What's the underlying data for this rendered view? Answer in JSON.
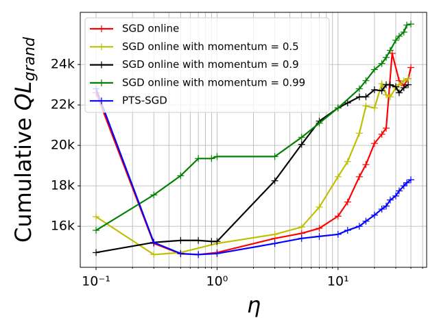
{
  "chart_data": {
    "type": "line",
    "xlabel": "η",
    "ylabel": "Cumulative",
    "ylabel_symbol": "QL",
    "ylabel_subscript": "grand",
    "xscale": "log",
    "xlim": [
      0.074,
      54
    ],
    "ylim": [
      13970,
      26580
    ],
    "xticks": [
      {
        "value": 0.1,
        "label": "10⁻¹"
      },
      {
        "value": 1,
        "label": "10⁰"
      },
      {
        "value": 10,
        "label": "10¹"
      }
    ],
    "xticks_minor": [
      0.2,
      0.3,
      0.4,
      0.5,
      0.6,
      0.7,
      0.8,
      0.9,
      2,
      3,
      4,
      5,
      6,
      7,
      8,
      9,
      20,
      30,
      40,
      50
    ],
    "yticks": [
      {
        "value": 16000,
        "label": "16k"
      },
      {
        "value": 18000,
        "label": "18k"
      },
      {
        "value": 20000,
        "label": "20k"
      },
      {
        "value": 22000,
        "label": "22k"
      },
      {
        "value": 24000,
        "label": "24k"
      }
    ],
    "grid": true,
    "legend": "upper left",
    "series": [
      {
        "name": "SGD online",
        "color": "#ff0000",
        "x": [
          0.1,
          0.3,
          0.5,
          0.7,
          1,
          3,
          5,
          7,
          10,
          12,
          15,
          17,
          20,
          23,
          25,
          28,
          32,
          35,
          38,
          40
        ],
        "values": [
          22600,
          15150,
          14640,
          14600,
          14700,
          15400,
          15650,
          15900,
          16500,
          17200,
          18450,
          19050,
          20100,
          20550,
          20850,
          24550,
          23200,
          22950,
          23300,
          23850
        ]
      },
      {
        "name": "SGD online with momentum = 0.5",
        "color": "#bfbf00",
        "x": [
          0.1,
          0.3,
          0.5,
          1,
          3,
          5,
          7,
          10,
          12,
          15,
          17,
          20,
          23,
          25,
          27,
          30,
          32,
          35,
          38
        ],
        "values": [
          16470,
          14600,
          14700,
          15150,
          15600,
          15960,
          16950,
          18450,
          19200,
          20600,
          21950,
          21850,
          23050,
          22500,
          22400,
          22850,
          23000,
          23200,
          23300
        ]
      },
      {
        "name": "SGD online with momentum = 0.9",
        "color": "#000000",
        "x": [
          0.1,
          0.3,
          0.5,
          0.7,
          0.9,
          1,
          3,
          5,
          7,
          10,
          12,
          15,
          17,
          20,
          23,
          25,
          27,
          30,
          32,
          35,
          38
        ],
        "values": [
          14700,
          15200,
          15300,
          15300,
          15250,
          15250,
          18250,
          20050,
          21200,
          21850,
          22100,
          22400,
          22400,
          22750,
          22700,
          23000,
          23000,
          22900,
          22600,
          22850,
          23000
        ]
      },
      {
        "name": "SGD online with momentum = 0.99",
        "color": "#008000",
        "x": [
          0.1,
          0.3,
          0.5,
          0.7,
          0.9,
          1,
          3,
          5,
          7,
          10,
          15,
          17,
          20,
          23,
          25,
          27,
          30,
          32,
          35,
          37,
          40
        ],
        "values": [
          15800,
          17550,
          18500,
          19350,
          19350,
          19450,
          19450,
          20400,
          21100,
          21850,
          22800,
          23200,
          23750,
          24050,
          24350,
          24700,
          25200,
          25400,
          25600,
          25950,
          26000
        ]
      },
      {
        "name": "PTS-SGD",
        "color": "#0000ff",
        "x": [
          0.1,
          0.3,
          0.5,
          0.7,
          1,
          3,
          5,
          7,
          10,
          12,
          15,
          17,
          20,
          23,
          25,
          27,
          30,
          32,
          35,
          37,
          40
        ],
        "values": [
          22800,
          15200,
          14650,
          14600,
          14650,
          15150,
          15400,
          15500,
          15600,
          15800,
          16000,
          16250,
          16550,
          16850,
          17000,
          17300,
          17500,
          17750,
          18000,
          18150,
          18300
        ]
      }
    ]
  }
}
